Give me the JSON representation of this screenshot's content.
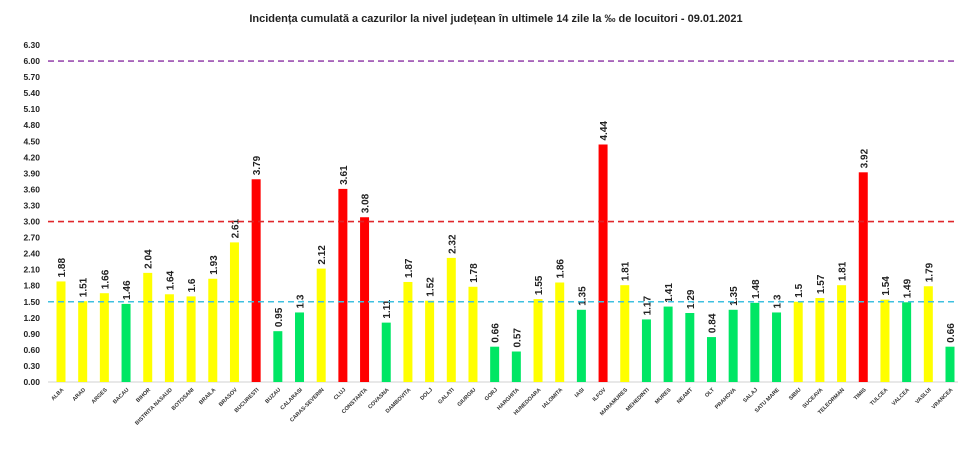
{
  "chart_data": {
    "type": "bar",
    "title": "Incidența cumulată a cazurilor la nivel județean în ultimele 14 zile la ‰ de locuitori - 09.01.2021",
    "xlabel": "",
    "ylabel": "",
    "ylim": [
      0,
      6.3
    ],
    "yticks": [
      "0.00",
      "0.30",
      "0.60",
      "0.90",
      "1.20",
      "1.50",
      "1.80",
      "2.10",
      "2.40",
      "2.70",
      "3.00",
      "3.30",
      "3.60",
      "3.90",
      "4.20",
      "4.50",
      "4.80",
      "5.10",
      "5.40",
      "5.70",
      "6.00",
      "6.30"
    ],
    "grid": false,
    "categories": [
      "ALBA",
      "ARAD",
      "ARGES",
      "BACAU",
      "BIHOR",
      "BISTRITA NASAUD",
      "BOTOSANI",
      "BRAILA",
      "BRASOV",
      "BUCURESTI",
      "BUZAU",
      "CALARASI",
      "CARAS-SEVERIN",
      "CLUJ",
      "CONSTANTA",
      "COVASNA",
      "DAMBOVITA",
      "DOLJ",
      "GALATI",
      "GIURGIU",
      "GORJ",
      "HARGHITA",
      "HUNEDOARA",
      "IALOMITA",
      "IASI",
      "ILFOV",
      "MARAMURES",
      "MEHEDINTI",
      "MURES",
      "NEAMT",
      "OLT",
      "PRAHOVA",
      "SALAJ",
      "SATU MARE",
      "SIBIU",
      "SUCEAVA",
      "TELEORMAN",
      "TIMIS",
      "TULCEA",
      "VALCEA",
      "VASLUI",
      "VRANCEA"
    ],
    "values": [
      1.88,
      1.51,
      1.66,
      1.46,
      2.04,
      1.64,
      1.6,
      1.93,
      2.61,
      3.79,
      0.95,
      1.3,
      2.12,
      3.61,
      3.08,
      1.11,
      1.87,
      1.52,
      2.32,
      1.78,
      0.66,
      0.57,
      1.55,
      1.86,
      1.35,
      4.44,
      1.81,
      1.17,
      1.41,
      1.29,
      0.84,
      1.35,
      1.48,
      1.3,
      1.5,
      1.57,
      1.81,
      3.92,
      1.54,
      1.49,
      1.79,
      0.66
    ],
    "value_labels": [
      "1.88",
      "1.51",
      "1.66",
      "1.46",
      "2.04",
      "1.64",
      "1.6",
      "1.93",
      "2.61",
      "3.79",
      "0.95",
      "1.3",
      "2.12",
      "3.61",
      "3.08",
      "1.11",
      "1.87",
      "1.52",
      "2.32",
      "1.78",
      "0.66",
      "0.57",
      "1.55",
      "1.86",
      "1.35",
      "4.44",
      "1.81",
      "1.17",
      "1.41",
      "1.29",
      "0.84",
      "1.35",
      "1.48",
      "1.3",
      "1.5",
      "1.57",
      "1.81",
      "3.92",
      "1.54",
      "1.49",
      "1.79",
      "0.66"
    ],
    "reference_lines": [
      {
        "value": 6.0,
        "color": "#9b4fb0",
        "style": "dashed"
      },
      {
        "value": 3.0,
        "color": "#e0262a",
        "style": "dashed"
      },
      {
        "value": 1.5,
        "color": "#3ec0e0",
        "style": "dashed"
      }
    ],
    "color_rule": {
      "below_1.5": "#00e664",
      "1.5_to_3": "#ffff00",
      "above_3": "#ff0000"
    }
  }
}
